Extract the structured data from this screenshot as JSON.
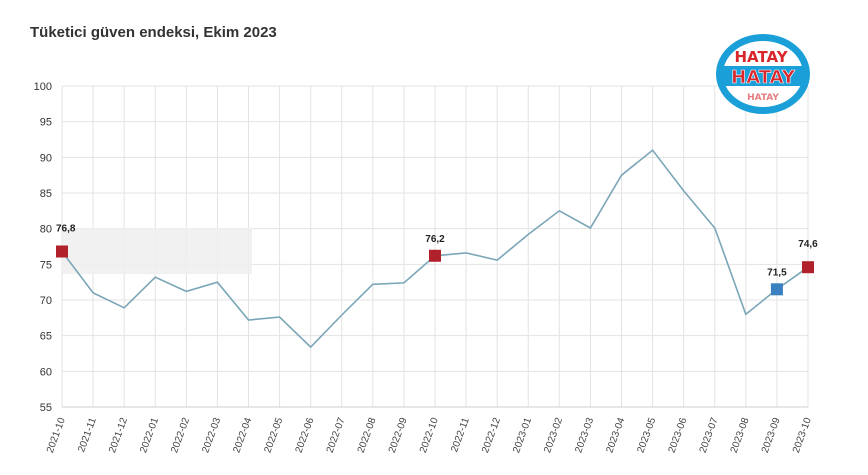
{
  "title": "Tüketici güven endeksi, Ekim 2023",
  "logo": {
    "text": "HATAY",
    "colors": {
      "ring": "#1a9fd8",
      "fill": "#ffffff",
      "text": "#d8262b"
    }
  },
  "colors": {
    "line": "#7aa6b8",
    "grid": "#e3e3e3",
    "marker_red": "#b0212b",
    "marker_blue": "#3a7fbf",
    "highlight": "#eeeeee"
  },
  "chart_data": {
    "type": "line",
    "title": "Tüketici güven endeksi, Ekim 2023",
    "xlabel": "",
    "ylabel": "",
    "ylim": [
      55,
      100
    ],
    "yticks": [
      55,
      60,
      65,
      70,
      75,
      80,
      85,
      90,
      95,
      100
    ],
    "grid": true,
    "categories": [
      "2021-10",
      "2021-11",
      "2021-12",
      "2022-01",
      "2022-02",
      "2022-03",
      "2022-04",
      "2022-05",
      "2022-06",
      "2022-07",
      "2022-08",
      "2022-09",
      "2022-10",
      "2022-11",
      "2022-12",
      "2023-01",
      "2023-02",
      "2023-03",
      "2023-04",
      "2023-05",
      "2023-06",
      "2023-07",
      "2023-08",
      "2023-09",
      "2023-10"
    ],
    "series": [
      {
        "values": [
          76.8,
          71.0,
          68.9,
          73.2,
          71.2,
          72.5,
          67.2,
          67.6,
          63.4,
          67.9,
          72.2,
          72.4,
          76.2,
          76.6,
          75.6,
          79.2,
          82.5,
          80.1,
          87.5,
          91.0,
          85.3,
          80.1,
          68.0,
          71.5,
          74.6
        ]
      }
    ],
    "markers": [
      {
        "index": 0,
        "label": "76,8",
        "color": "red"
      },
      {
        "index": 12,
        "label": "76,2",
        "color": "red"
      },
      {
        "index": 23,
        "label": "71,5",
        "color": "blue"
      },
      {
        "index": 24,
        "label": "74,6",
        "color": "red"
      }
    ]
  }
}
